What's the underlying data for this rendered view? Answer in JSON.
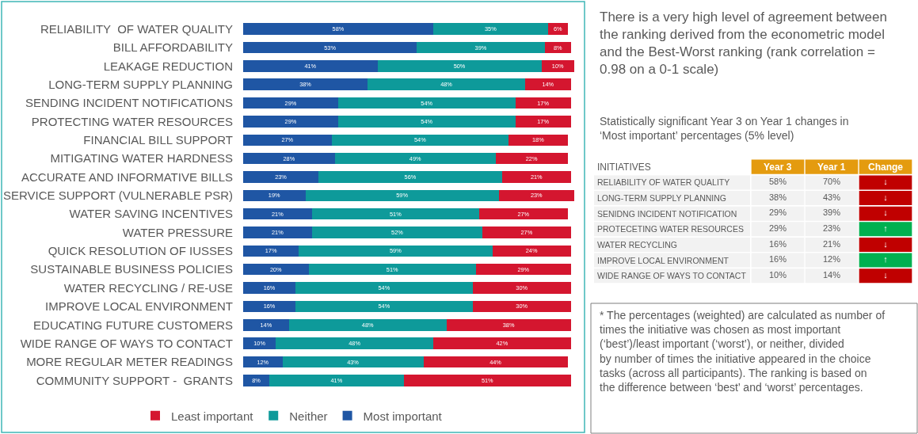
{
  "chart_data": [
    {
      "type": "bar",
      "orientation": "horizontal",
      "stacked": true,
      "legend": "bottom",
      "categories": [
        "RELIABILITY  OF WATER QUALITY",
        "BILL AFFORDABILITY",
        "LEAKAGE REDUCTION",
        "LONG-TERM SUPPLY PLANNING",
        "SENDING INCIDENT NOTIFICATIONS",
        "PROTECTING WATER RESOURCES",
        "FINANCIAL BILL SUPPORT",
        "MITIGATING WATER HARDNESS",
        "ACCURATE AND INFORMATIVE BILLS",
        "SERVICE SUPPORT (VULNERABLE PSR)",
        "WATER SAVING INCENTIVES",
        "WATER PRESSURE",
        "QUICK RESOLUTION OF IUSSES",
        "SUSTAINABLE BUSINESS POLICIES",
        "WATER RECYCLING / RE-USE",
        "IMPROVE LOCAL ENVIRONMENT",
        "EDUCATING FUTURE CUSTOMERS",
        "WIDE RANGE OF WAYS TO CONTACT",
        "MORE REGULAR METER READINGS",
        "COMMUNITY SUPPORT -  GRANTS"
      ],
      "series": [
        {
          "name": "Most important",
          "color": "#1f56a4",
          "values": [
            58,
            53,
            41,
            38,
            29,
            29,
            27,
            28,
            23,
            19,
            21,
            21,
            17,
            20,
            16,
            16,
            14,
            10,
            12,
            8
          ],
          "value_labels": [
            "58%",
            "53%",
            "41%",
            "38%",
            "29%",
            "29%",
            "27%",
            "28%",
            "23%",
            "19%",
            "21%",
            "21%",
            "17%",
            "20%",
            "16%",
            "16%",
            "14%",
            "10%",
            "12%",
            "8%"
          ]
        },
        {
          "name": "Neither",
          "color": "#0e9a9a",
          "values": [
            35,
            39,
            50,
            48,
            54,
            54,
            54,
            49,
            56,
            59,
            51,
            52,
            59,
            51,
            54,
            54,
            48,
            48,
            43,
            41
          ],
          "value_labels": [
            "35%",
            "39%",
            "50%",
            "48%",
            "54%",
            "54%",
            "54%",
            "49%",
            "56%",
            "59%",
            "51%",
            "52%",
            "59%",
            "51%",
            "54%",
            "54%",
            "48%",
            "48%",
            "43%",
            "41%"
          ]
        },
        {
          "name": "Least important",
          "color": "#d4162f",
          "values": [
            6,
            8,
            10,
            14,
            17,
            17,
            18,
            22,
            21,
            23,
            27,
            27,
            24,
            29,
            30,
            30,
            38,
            42,
            44,
            51
          ],
          "value_labels": [
            "6%",
            "8%",
            "10%",
            "14%",
            "17%",
            "17%",
            "18%",
            "22%",
            "21%",
            "23%",
            "27%",
            "27%",
            "24%",
            "29%",
            "30%",
            "30%",
            "38%",
            "42%",
            "44%",
            "51%"
          ]
        }
      ]
    },
    {
      "type": "other",
      "title": "Statistically significant Year 3 on Year 1 changes in ‘Most important’ percentages (5% level)",
      "ylabel": "INITIATIVES",
      "categories": [
        "Year 3",
        "Year 1",
        "Change"
      ],
      "y_categories": [
        "RELIABILITY OF WATER QUALITY",
        "LONG-TERM SUPPLY PLANNING",
        "SENIDNG INCIDENT NOTIFICATION",
        "PROTECETING WATER RESOURCES",
        "WATER RECYCLING",
        "IMPROVE LOCAL ENVIRONMENT",
        "WIDE RANGE OF WAYS TO CONTACT"
      ],
      "cell_labels": [
        [
          "58%",
          "70%",
          "↓"
        ],
        [
          "38%",
          "43%",
          "↓"
        ],
        [
          "29%",
          "39%",
          "↓"
        ],
        [
          "29%",
          "23%",
          "↑"
        ],
        [
          "16%",
          "21%",
          "↓"
        ],
        [
          "16%",
          "12%",
          "↑"
        ],
        [
          "10%",
          "14%",
          "↓"
        ]
      ],
      "colors": [
        [
          "#f2f2f2",
          "#f2f2f2",
          "#c00000"
        ],
        [
          "#f2f2f2",
          "#f2f2f2",
          "#c00000"
        ],
        [
          "#f2f2f2",
          "#f2f2f2",
          "#c00000"
        ],
        [
          "#f2f2f2",
          "#f2f2f2",
          "#00b050"
        ],
        [
          "#f2f2f2",
          "#f2f2f2",
          "#c00000"
        ],
        [
          "#f2f2f2",
          "#f2f2f2",
          "#00b050"
        ],
        [
          "#f2f2f2",
          "#f2f2f2",
          "#c00000"
        ]
      ],
      "annotations": [
        "There is a very high level of agreement between the ranking derived from the econometric model and the Best-Worst ranking (rank correlation = 0.98 on a 0-1 scale)",
        "* The percentages (weighted) are calculated as number of times the initiative was chosen as most important (‘best’)/least important (‘worst’), or neither, divided by number of times the initiative appeared in the choice tasks (across all participants). The ranking is based on the difference between ‘best’ and ‘worst’ percentages."
      ]
    }
  ]
}
